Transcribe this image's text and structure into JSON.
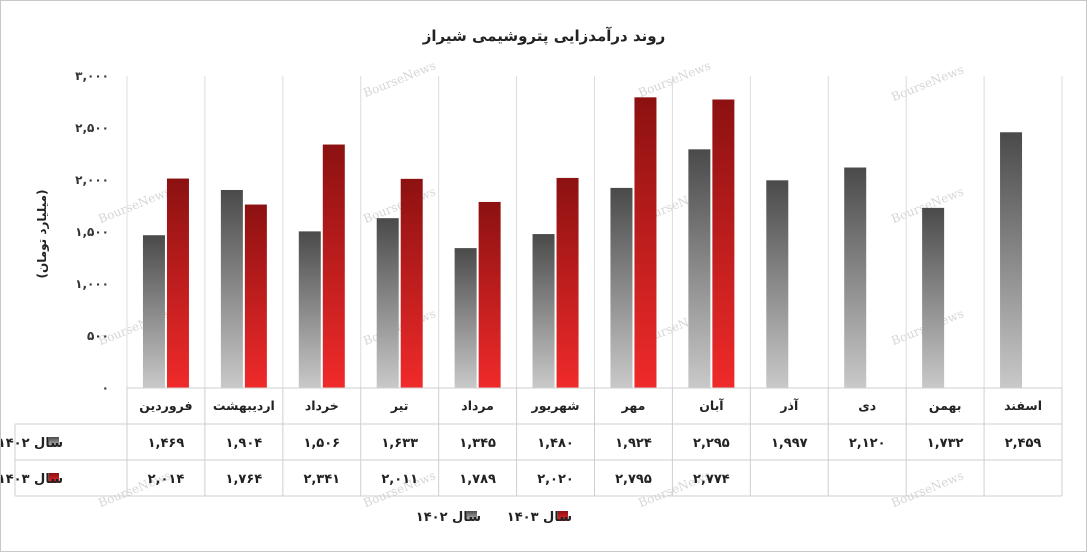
{
  "chart_data": {
    "type": "bar",
    "title": "روند درآمدزایی پتروشیمی شیراز",
    "ylabel": "(میلیارد تومان)",
    "ylim": [
      0,
      3000
    ],
    "yticks": [
      "۰",
      "۵۰۰",
      "۱,۰۰۰",
      "۱,۵۰۰",
      "۲,۰۰۰",
      "۲,۵۰۰",
      "۳,۰۰۰"
    ],
    "categories": [
      "فروردین",
      "اردیبهشت",
      "خرداد",
      "تیر",
      "مرداد",
      "شهریور",
      "مهر",
      "آبان",
      "آذر",
      "دی",
      "بهمن",
      "اسفند"
    ],
    "series": [
      {
        "name": "سال ۱۴۰۲",
        "color": "#7a7a7a",
        "values": [
          1469,
          1904,
          1506,
          1633,
          1345,
          1480,
          1924,
          2295,
          1997,
          2120,
          1732,
          2459
        ],
        "labels": [
          "۱,۴۶۹",
          "۱,۹۰۴",
          "۱,۵۰۶",
          "۱,۶۳۳",
          "۱,۳۴۵",
          "۱,۴۸۰",
          "۱,۹۲۴",
          "۲,۲۹۵",
          "۱,۹۹۷",
          "۲,۱۲۰",
          "۱,۷۳۲",
          "۲,۴۵۹"
        ]
      },
      {
        "name": "سال ۱۴۰۳",
        "color": "#b81a1a",
        "values": [
          2014,
          1764,
          2341,
          2011,
          1789,
          2020,
          2795,
          2774,
          null,
          null,
          null,
          null
        ],
        "labels": [
          "۲,۰۱۴",
          "۱,۷۶۴",
          "۲,۳۴۱",
          "۲,۰۱۱",
          "۱,۷۸۹",
          "۲,۰۲۰",
          "۲,۷۹۵",
          "۲,۷۷۴",
          "",
          "",
          "",
          ""
        ]
      }
    ],
    "data_table": true,
    "legend_position": "bottom",
    "grid": "vertical category separators",
    "watermark": "BourseNews"
  }
}
